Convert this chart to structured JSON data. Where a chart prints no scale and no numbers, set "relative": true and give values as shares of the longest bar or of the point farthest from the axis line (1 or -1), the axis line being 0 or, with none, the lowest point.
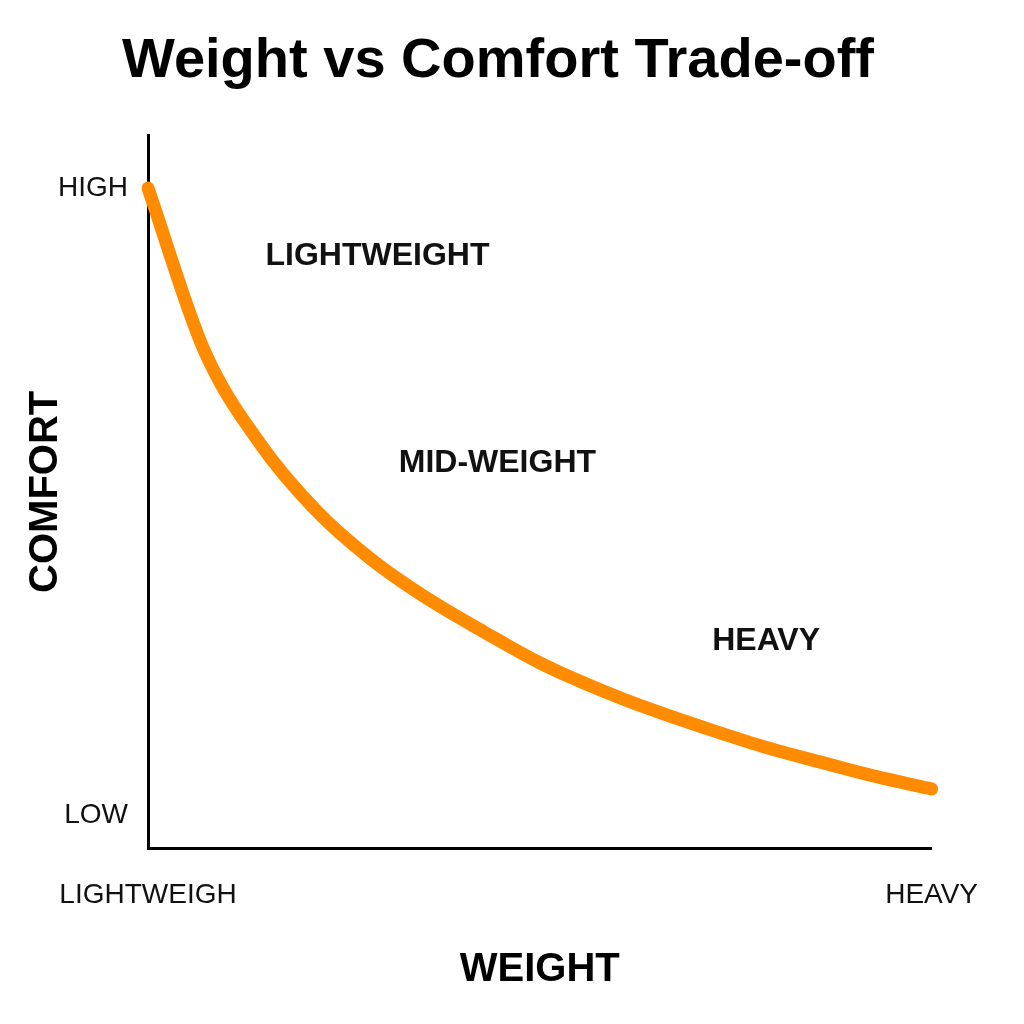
{
  "chart_data": {
    "type": "line",
    "title": "Weight vs Comfort Trade-off",
    "xlabel": "WEIGHT",
    "ylabel": "COMFORT",
    "relative": true,
    "grid": false,
    "legend": false,
    "marker": "none",
    "line_style": "solid",
    "categories": [
      "LIGHTWEIGH",
      null,
      null,
      null,
      null,
      null,
      null,
      null,
      null,
      null,
      null,
      null,
      null,
      null,
      "HEAVY"
    ],
    "series": [
      {
        "color": "#ff8c00",
        "values": [
          1.0,
          0.755,
          0.613,
          0.512,
          0.437,
          0.378,
          0.328,
          0.281,
          0.243,
          0.21,
          0.181,
          0.154,
          0.131,
          0.109,
          0.09
        ]
      }
    ],
    "annotations": [
      "HIGH",
      "LOW",
      "LIGHTWEIGHT",
      "MID-WEIGHT",
      "HEAVY"
    ]
  }
}
